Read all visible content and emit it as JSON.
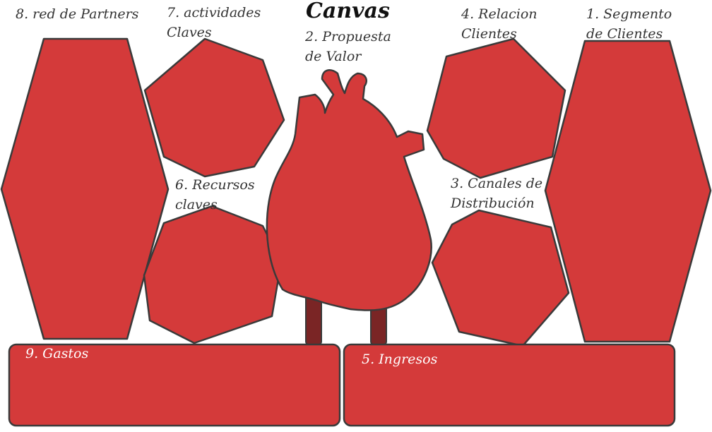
{
  "title": "Canvas",
  "colors": {
    "block_fill": "#d43a3a",
    "outline": "#3a3a3a",
    "heart_stem": "#7a2525",
    "label_text": "#333333",
    "box_label_text": "#ffffff"
  },
  "blocks": {
    "segmento_clientes": {
      "label_line1": "1. Segmento",
      "label_line2": "de Clientes"
    },
    "propuesta_valor": {
      "label_line1": "2. Propuesta",
      "label_line2": "de Valor",
      "icon": "heart-icon"
    },
    "canales_distribucion": {
      "label_line1": "3. Canales de",
      "label_line2": "Distribución"
    },
    "relacion_clientes": {
      "label_line1": "4. Relacion",
      "label_line2": "Clientes"
    },
    "ingresos": {
      "label": "5. Ingresos"
    },
    "recursos_claves": {
      "label_line1": "6. Recursos",
      "label_line2": "claves"
    },
    "actividades_claves": {
      "label_line1": "7. actividades",
      "label_line2": "Claves"
    },
    "red_partners": {
      "label": "8. red de Partners"
    },
    "gastos": {
      "label": "9. Gastos"
    }
  }
}
